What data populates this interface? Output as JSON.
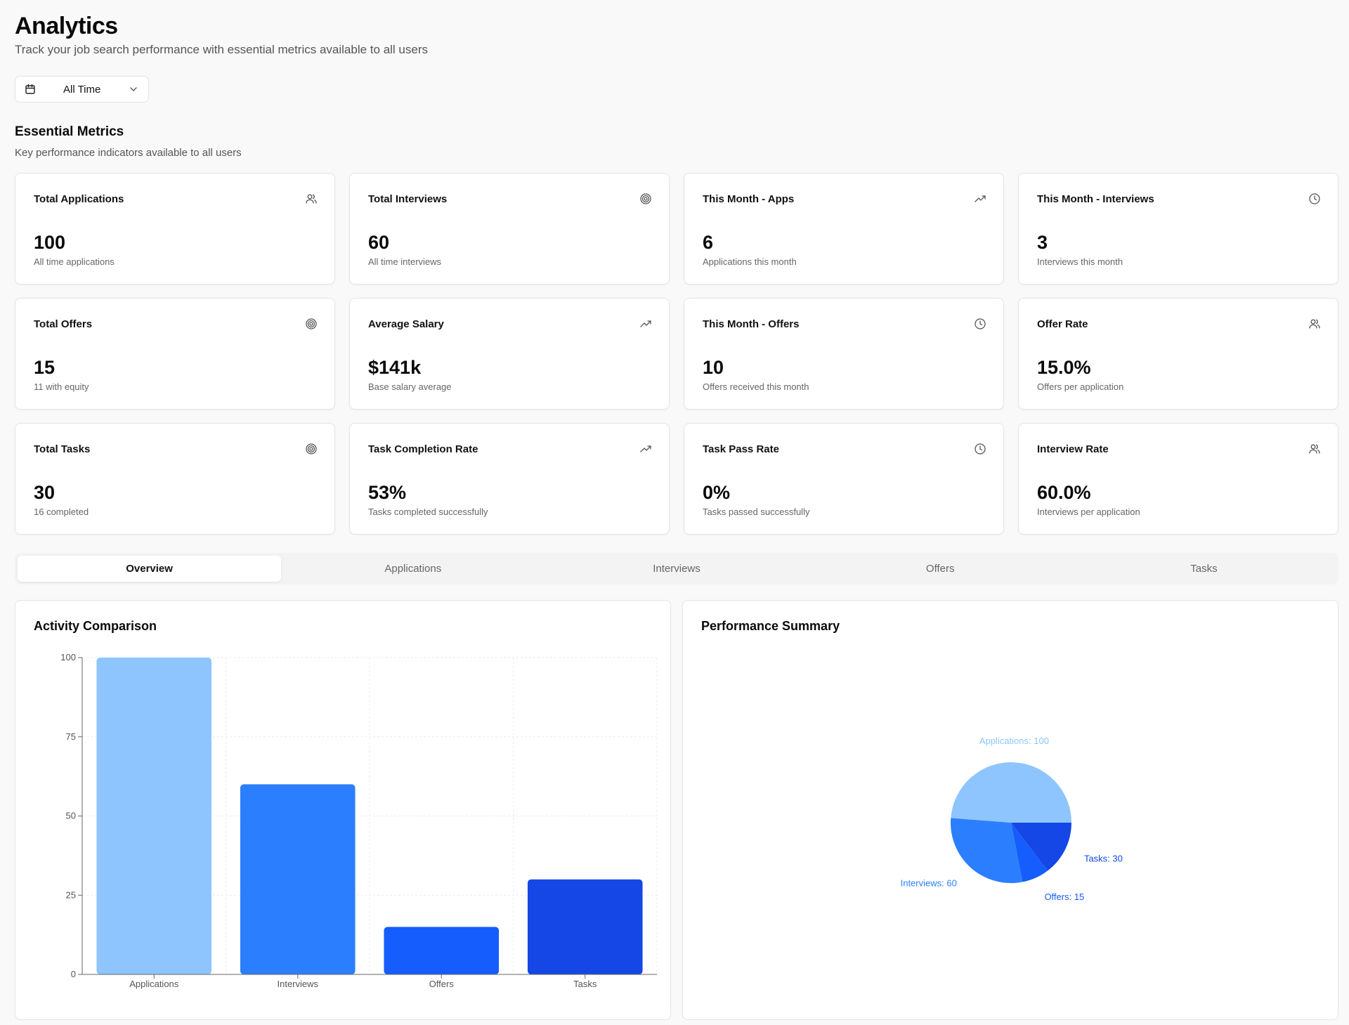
{
  "header": {
    "title": "Analytics",
    "subtitle": "Track your job search performance with essential metrics available to all users"
  },
  "filter": {
    "icon": "calendar-icon",
    "selected": "All Time"
  },
  "essential": {
    "title": "Essential Metrics",
    "subtitle": "Key performance indicators available to all users"
  },
  "metrics": [
    {
      "title": "Total Applications",
      "value": "100",
      "desc": "All time applications",
      "icon": "users-icon"
    },
    {
      "title": "Total Interviews",
      "value": "60",
      "desc": "All time interviews",
      "icon": "target-icon"
    },
    {
      "title": "This Month - Apps",
      "value": "6",
      "desc": "Applications this month",
      "icon": "trending-up-icon"
    },
    {
      "title": "This Month - Interviews",
      "value": "3",
      "desc": "Interviews this month",
      "icon": "clock-icon"
    },
    {
      "title": "Total Offers",
      "value": "15",
      "desc": "11 with equity",
      "icon": "target-icon"
    },
    {
      "title": "Average Salary",
      "value": "$141k",
      "desc": "Base salary average",
      "icon": "trending-up-icon"
    },
    {
      "title": "This Month - Offers",
      "value": "10",
      "desc": "Offers received this month",
      "icon": "clock-icon"
    },
    {
      "title": "Offer Rate",
      "value": "15.0%",
      "desc": "Offers per application",
      "icon": "users-icon"
    },
    {
      "title": "Total Tasks",
      "value": "30",
      "desc": "16 completed",
      "icon": "target-icon"
    },
    {
      "title": "Task Completion Rate",
      "value": "53%",
      "desc": "Tasks completed successfully",
      "icon": "trending-up-icon"
    },
    {
      "title": "Task Pass Rate",
      "value": "0%",
      "desc": "Tasks passed successfully",
      "icon": "clock-icon"
    },
    {
      "title": "Interview Rate",
      "value": "60.0%",
      "desc": "Interviews per application",
      "icon": "users-icon"
    }
  ],
  "tabs": [
    {
      "label": "Overview",
      "active": true
    },
    {
      "label": "Applications",
      "active": false
    },
    {
      "label": "Interviews",
      "active": false
    },
    {
      "label": "Offers",
      "active": false
    },
    {
      "label": "Tasks",
      "active": false
    }
  ],
  "panels": {
    "activity_title": "Activity Comparison",
    "summary_title": "Performance Summary"
  },
  "chart_data": [
    {
      "type": "bar",
      "title": "Activity Comparison",
      "categories": [
        "Applications",
        "Interviews",
        "Offers",
        "Tasks"
      ],
      "values": [
        100,
        60,
        15,
        30
      ],
      "colors": [
        "#8ec5ff",
        "#2b7fff",
        "#155dfc",
        "#1447e6"
      ],
      "ylim": [
        0,
        100
      ],
      "yticks": [
        0,
        25,
        50,
        75,
        100
      ],
      "grid": true,
      "xlabel": "",
      "ylabel": ""
    },
    {
      "type": "pie",
      "title": "Performance Summary",
      "slices": [
        {
          "label": "Applications",
          "value": 100,
          "text": "Applications: 100",
          "color": "#8ec5ff"
        },
        {
          "label": "Interviews",
          "value": 60,
          "text": "Interviews: 60",
          "color": "#2b7fff"
        },
        {
          "label": "Offers",
          "value": 15,
          "text": "Offers: 15",
          "color": "#155dfc"
        },
        {
          "label": "Tasks",
          "value": 30,
          "text": "Tasks: 30",
          "color": "#1447e6"
        }
      ]
    }
  ]
}
